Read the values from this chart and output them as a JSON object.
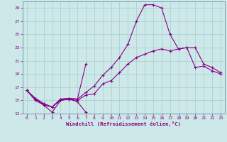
{
  "bg_color": "#cce8e8",
  "line_color": "#880088",
  "grid_color": "#aacccc",
  "xlabel": "Windchill (Refroidissement éolien,°C)",
  "xlim": [
    -0.5,
    23.5
  ],
  "ylim": [
    13,
    30
  ],
  "xticks": [
    0,
    1,
    2,
    3,
    4,
    5,
    6,
    7,
    8,
    9,
    10,
    11,
    12,
    13,
    14,
    15,
    16,
    17,
    18,
    19,
    20,
    21,
    22,
    23
  ],
  "yticks": [
    13,
    15,
    17,
    19,
    21,
    23,
    25,
    27,
    29
  ],
  "lines": [
    [
      16.5,
      15.0,
      14.3,
      13.2,
      15.0,
      15.2,
      14.8,
      13.2,
      null,
      null,
      null,
      null,
      null,
      null,
      null,
      null,
      null,
      null,
      null,
      null,
      null,
      null,
      null,
      null
    ],
    [
      16.5,
      15.2,
      14.3,
      14.0,
      15.0,
      15.2,
      15.0,
      15.8,
      16.0,
      17.5,
      18.0,
      19.2,
      20.5,
      21.5,
      22.0,
      22.5,
      22.8,
      22.5,
      22.8,
      23.0,
      20.0,
      20.2,
      19.5,
      19.0
    ],
    [
      16.5,
      15.3,
      14.5,
      14.0,
      15.2,
      15.3,
      15.2,
      20.5,
      null,
      null,
      null,
      null,
      null,
      null,
      null,
      null,
      null,
      null,
      null,
      null,
      null,
      null,
      null,
      null
    ],
    [
      16.5,
      15.3,
      14.5,
      14.0,
      15.2,
      15.3,
      15.2,
      16.2,
      17.2,
      18.8,
      20.0,
      21.5,
      23.5,
      27.0,
      29.5,
      29.5,
      29.0,
      25.0,
      22.8,
      23.0,
      23.0,
      20.5,
      20.0,
      19.2
    ]
  ]
}
